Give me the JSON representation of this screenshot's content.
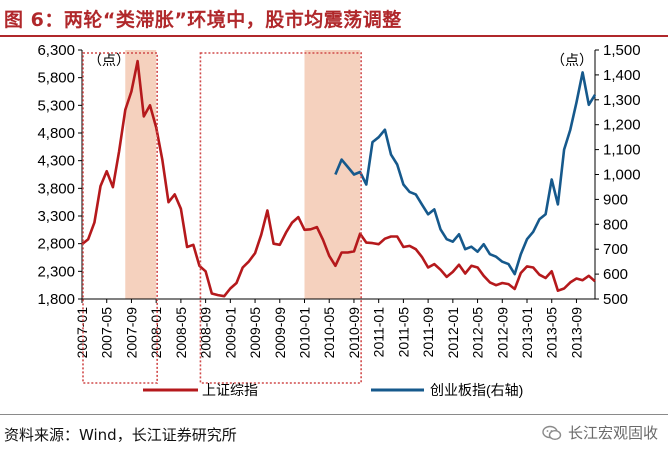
{
  "header": {
    "title": "图 6：两轮“类滞胀”环境中，股市均震荡调整"
  },
  "footer": {
    "source": "资料来源：Wind，长江证券研究所",
    "brand": "长江宏观固收"
  },
  "colors": {
    "sh": "#b5191c",
    "cy": "#16598c",
    "box": "#d04a4a",
    "shade": "#f3c9b3",
    "title": "#b0282b"
  },
  "chart_data": {
    "type": "line",
    "title": "",
    "left_unit": "（点）",
    "right_unit": "（点）",
    "left_axis": {
      "min": 1800,
      "max": 6300,
      "ticks": [
        "6,300",
        "5,800",
        "5,300",
        "4,800",
        "4,300",
        "3,800",
        "3,300",
        "2,800",
        "2,300",
        "1,800"
      ]
    },
    "right_axis": {
      "min": 500,
      "max": 1500,
      "ticks": [
        "1,500",
        "1,400",
        "1,300",
        "1,200",
        "1,100",
        "1,000",
        "900",
        "800",
        "700",
        "600",
        "500"
      ]
    },
    "x_ticks": [
      "2007-01",
      "2007-05",
      "2007-09",
      "2008-01",
      "2008-05",
      "2008-09",
      "2009-01",
      "2009-05",
      "2009-09",
      "2010-01",
      "2010-05",
      "2010-09",
      "2011-01",
      "2011-05",
      "2011-09",
      "2012-01",
      "2012-05",
      "2012-09",
      "2013-01",
      "2013-05",
      "2013-09"
    ],
    "legend": [
      "上证综指",
      "创业板指(右轴)"
    ],
    "shaded_periods": [
      [
        "2007-08",
        "2008-01"
      ],
      [
        "2010-01",
        "2010-10"
      ]
    ],
    "boxed_periods": [
      [
        "2007-01",
        "2008-01"
      ],
      [
        "2008-08",
        "2010-10"
      ]
    ],
    "series": [
      {
        "name": "上证综指",
        "axis": "left",
        "x": [
          "2007-01",
          "2007-02",
          "2007-03",
          "2007-04",
          "2007-05",
          "2007-06",
          "2007-07",
          "2007-08",
          "2007-09",
          "2007-10",
          "2007-11",
          "2007-12",
          "2008-01",
          "2008-02",
          "2008-03",
          "2008-04",
          "2008-05",
          "2008-06",
          "2008-07",
          "2008-08",
          "2008-09",
          "2008-10",
          "2008-11",
          "2008-12",
          "2009-01",
          "2009-02",
          "2009-03",
          "2009-04",
          "2009-05",
          "2009-06",
          "2009-07",
          "2009-08",
          "2009-09",
          "2009-10",
          "2009-11",
          "2009-12",
          "2010-01",
          "2010-02",
          "2010-03",
          "2010-04",
          "2010-05",
          "2010-06",
          "2010-07",
          "2010-08",
          "2010-09",
          "2010-10",
          "2010-11",
          "2010-12",
          "2011-01",
          "2011-02",
          "2011-03",
          "2011-04",
          "2011-05",
          "2011-06",
          "2011-07",
          "2011-08",
          "2011-09",
          "2011-10",
          "2011-11",
          "2011-12",
          "2012-01",
          "2012-02",
          "2012-03",
          "2012-04",
          "2012-05",
          "2012-06",
          "2012-07",
          "2012-08",
          "2012-09",
          "2012-10",
          "2012-11",
          "2012-12",
          "2013-01",
          "2013-02",
          "2013-03",
          "2013-04",
          "2013-05",
          "2013-06",
          "2013-07",
          "2013-08",
          "2013-09",
          "2013-10",
          "2013-11",
          "2013-12"
        ],
        "values": [
          2790,
          2880,
          3180,
          3840,
          4110,
          3820,
          4470,
          5220,
          5550,
          6100,
          5100,
          5300,
          4900,
          4320,
          3550,
          3690,
          3430,
          2740,
          2780,
          2400,
          2300,
          1900,
          1870,
          1850,
          1990,
          2090,
          2370,
          2480,
          2630,
          2960,
          3400,
          2800,
          2780,
          3000,
          3180,
          3280,
          3050,
          3060,
          3100,
          2870,
          2580,
          2400,
          2640,
          2640,
          2660,
          2980,
          2820,
          2810,
          2790,
          2890,
          2930,
          2930,
          2740,
          2760,
          2700,
          2560,
          2370,
          2430,
          2330,
          2200,
          2290,
          2420,
          2260,
          2400,
          2370,
          2220,
          2100,
          2050,
          2090,
          2070,
          1980,
          2270,
          2390,
          2370,
          2240,
          2180,
          2300,
          1950,
          1990,
          2100,
          2170,
          2140,
          2220,
          2120
        ]
      },
      {
        "name": "创业板指(右轴)",
        "axis": "right",
        "x": [
          "2010-06",
          "2010-07",
          "2010-08",
          "2010-09",
          "2010-10",
          "2010-11",
          "2010-12",
          "2011-01",
          "2011-02",
          "2011-03",
          "2011-04",
          "2011-05",
          "2011-06",
          "2011-07",
          "2011-08",
          "2011-09",
          "2011-10",
          "2011-11",
          "2011-12",
          "2012-01",
          "2012-02",
          "2012-03",
          "2012-04",
          "2012-05",
          "2012-06",
          "2012-07",
          "2012-08",
          "2012-09",
          "2012-10",
          "2012-11",
          "2012-12",
          "2013-01",
          "2013-02",
          "2013-03",
          "2013-04",
          "2013-05",
          "2013-06",
          "2013-07",
          "2013-08",
          "2013-09",
          "2013-10",
          "2013-11",
          "2013-12"
        ],
        "values": [
          1000,
          1060,
          1030,
          1000,
          1010,
          960,
          1130,
          1150,
          1180,
          1080,
          1040,
          960,
          930,
          920,
          880,
          840,
          860,
          780,
          740,
          730,
          760,
          700,
          710,
          690,
          720,
          680,
          670,
          650,
          640,
          600,
          680,
          740,
          770,
          820,
          840,
          980,
          880,
          1100,
          1180,
          1290,
          1410,
          1280,
          1320
        ]
      }
    ]
  }
}
